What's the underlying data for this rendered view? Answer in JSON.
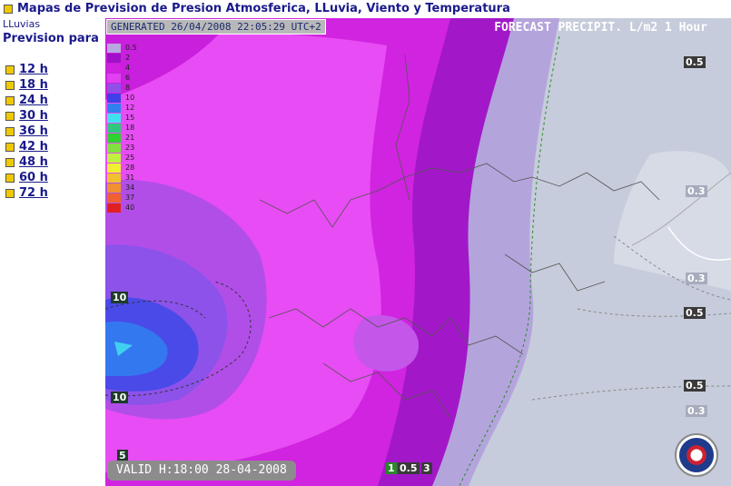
{
  "title_bar": {
    "text": "Mapas de Prevision de Presion Atmosferica, LLuvia, Viento y Temperatura"
  },
  "sidebar": {
    "section": "LLuvias",
    "heading": "Prevision para",
    "links": [
      {
        "label": "12 h"
      },
      {
        "label": "18 h"
      },
      {
        "label": "24 h"
      },
      {
        "label": "30 h"
      },
      {
        "label": "36 h"
      },
      {
        "label": "42 h"
      },
      {
        "label": "48 h"
      },
      {
        "label": "60 h"
      },
      {
        "label": "72 h"
      }
    ]
  },
  "map": {
    "generated": "GENERATED 26/04/2008 22:05:29 UTC+2",
    "forecast_title": "FORECAST  PRECIPIT. L/m2  1 Hour",
    "valid": "VALID H:18:00  28-04-2008",
    "legend": [
      {
        "value": "0.5",
        "color": "#b8a8e0"
      },
      {
        "value": "2",
        "color": "#a010c8"
      },
      {
        "value": "4",
        "color": "#d020e0"
      },
      {
        "value": "6",
        "color": "#e040f0"
      },
      {
        "value": "8",
        "color": "#9050e8"
      },
      {
        "value": "10",
        "color": "#4040e8"
      },
      {
        "value": "12",
        "color": "#3080f0"
      },
      {
        "value": "15",
        "color": "#40e0f0"
      },
      {
        "value": "18",
        "color": "#30c880"
      },
      {
        "value": "21",
        "color": "#30d030"
      },
      {
        "value": "23",
        "color": "#80e040"
      },
      {
        "value": "25",
        "color": "#c0f040"
      },
      {
        "value": "28",
        "color": "#f0f030"
      },
      {
        "value": "31",
        "color": "#f0c030"
      },
      {
        "value": "34",
        "color": "#f09030"
      },
      {
        "value": "37",
        "color": "#f06030"
      },
      {
        "value": "40",
        "color": "#e02020"
      }
    ],
    "isolines": [
      "0.5",
      "0.3",
      "0.3",
      "0.5",
      "0.5",
      "0.3",
      "10",
      "10",
      "5",
      "1",
      "0.5",
      "3"
    ]
  }
}
